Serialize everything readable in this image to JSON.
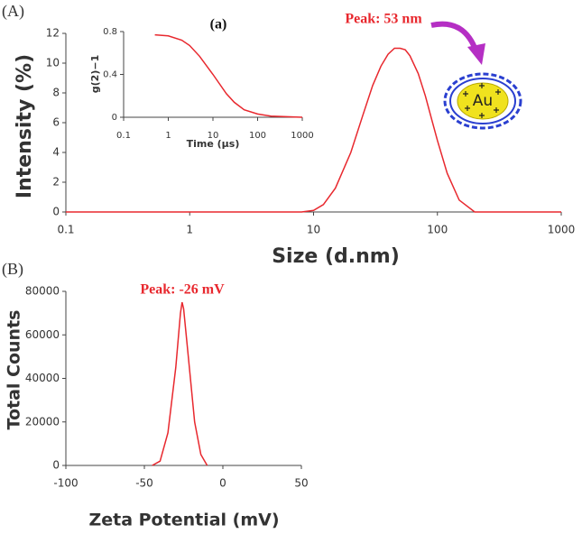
{
  "chart_data": [
    {
      "type": "line",
      "panel": "(A)",
      "annotation": "Peak: 53 nm",
      "icon_label": "Au",
      "xlabel": "Size (d.nm)",
      "ylabel": "Intensity (%)",
      "log_x": true,
      "color": "#e8282e",
      "x": [
        0.1,
        8,
        10,
        12,
        15,
        20,
        25,
        30,
        35,
        40,
        45,
        50,
        55,
        60,
        70,
        80,
        90,
        100,
        120,
        150,
        200,
        1000
      ],
      "values": [
        0,
        0,
        0.1,
        0.5,
        1.6,
        4,
        6.5,
        8.5,
        9.8,
        10.6,
        11,
        11,
        10.9,
        10.5,
        9.3,
        7.8,
        6.2,
        4.8,
        2.6,
        0.8,
        0,
        0
      ],
      "xlim": [
        0.1,
        1000
      ],
      "xticks": [
        0.1,
        1,
        10,
        100,
        1000
      ],
      "ylim": [
        0,
        12
      ],
      "yticks": [
        0,
        2,
        4,
        6,
        8,
        10,
        12
      ]
    },
    {
      "type": "line",
      "title": "(a)",
      "xlabel": "Time (μs)",
      "ylabel": "g(2)−1",
      "log_x": true,
      "color": "#e8282e",
      "x": [
        0.5,
        1,
        2,
        3,
        5,
        10,
        20,
        30,
        50,
        100,
        200,
        1000
      ],
      "values": [
        0.77,
        0.76,
        0.72,
        0.67,
        0.57,
        0.4,
        0.22,
        0.14,
        0.07,
        0.03,
        0.01,
        0
      ],
      "xlim": [
        0.1,
        1000
      ],
      "xticks": [
        0.1,
        1,
        10,
        100,
        1000
      ],
      "ylim": [
        0,
        0.8
      ],
      "yticks": [
        0,
        0.4,
        0.8
      ]
    },
    {
      "type": "line",
      "panel": "(B)",
      "annotation": "Peak: -26 mV",
      "xlabel": "Zeta Potential (mV)",
      "ylabel": "Total Counts",
      "log_x": false,
      "color": "#e8282e",
      "x": [
        -45,
        -40,
        -35,
        -30,
        -27,
        -26,
        -25,
        -22,
        -18,
        -14,
        -10
      ],
      "values": [
        0,
        2000,
        15000,
        45000,
        70000,
        75000,
        72000,
        50000,
        20000,
        5000,
        0
      ],
      "xlim": [
        -100,
        50
      ],
      "xticks": [
        -100,
        -50,
        0,
        50
      ],
      "ylim": [
        0,
        80000
      ],
      "yticks": [
        0,
        20000,
        40000,
        60000,
        80000
      ]
    }
  ]
}
